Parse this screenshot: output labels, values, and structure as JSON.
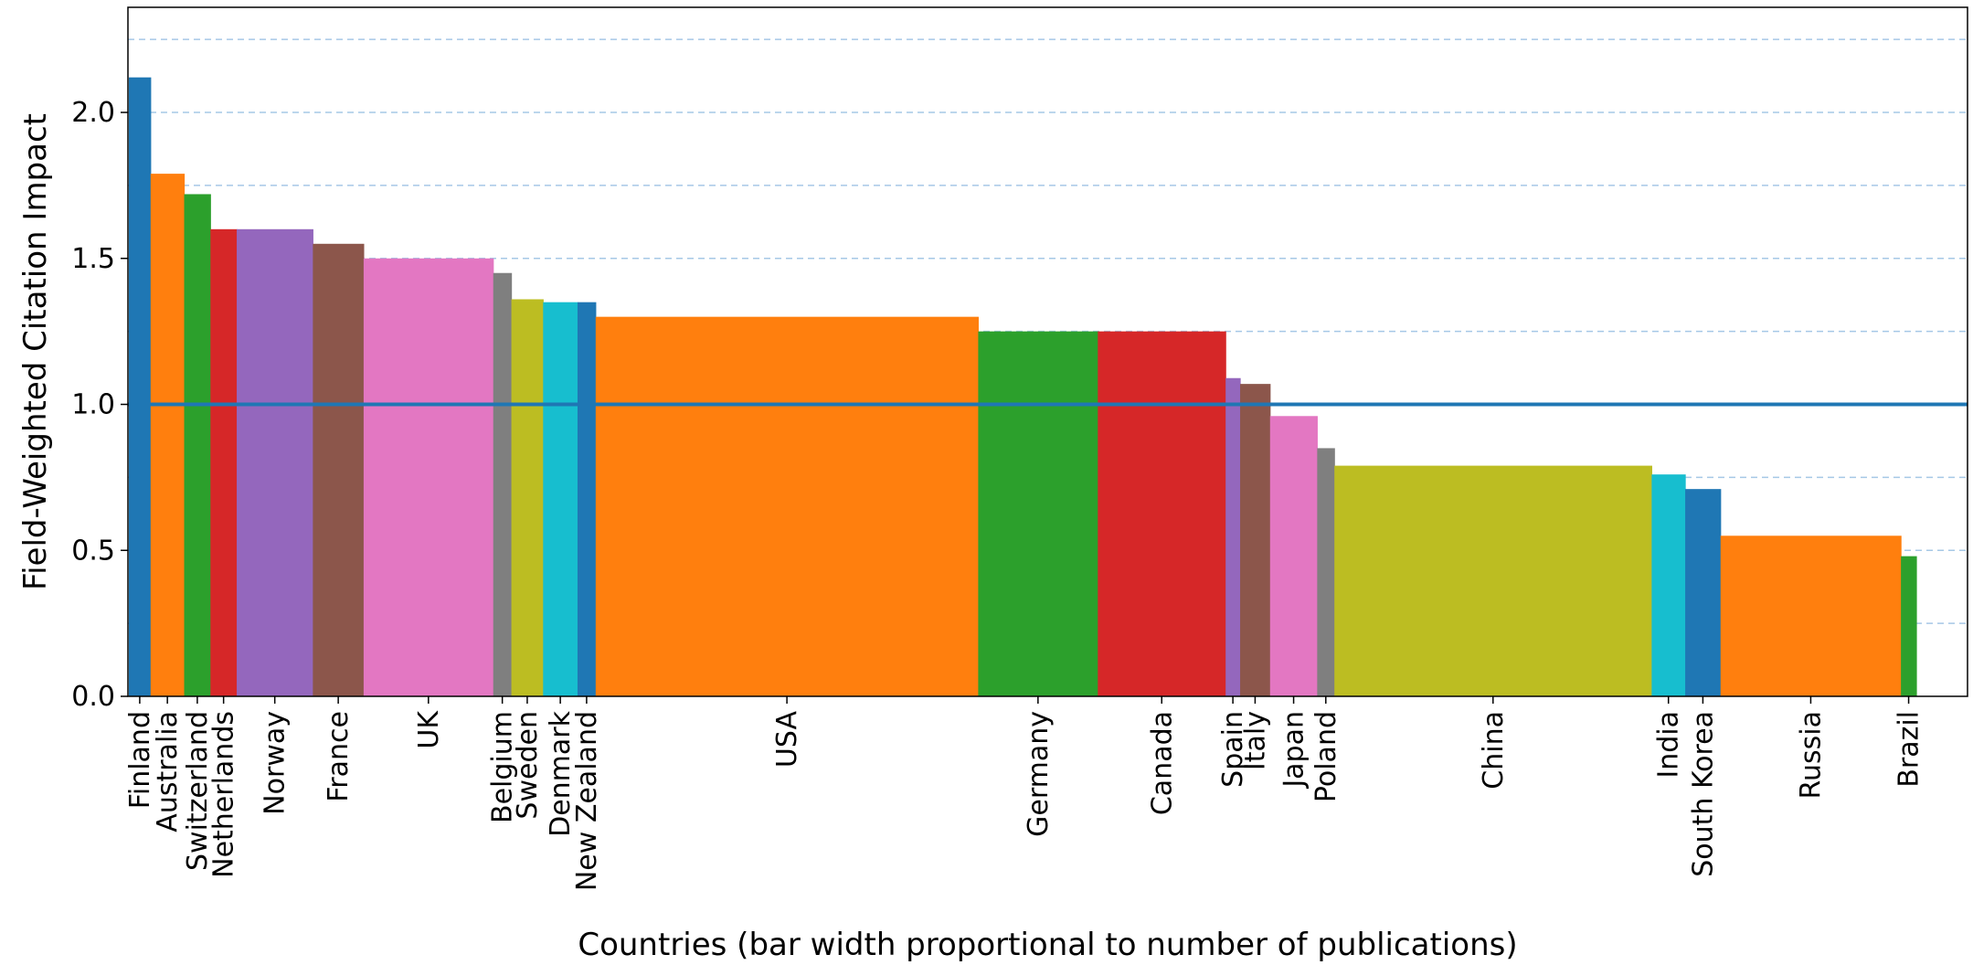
{
  "chart_data": {
    "type": "bar",
    "title": "",
    "xlabel": "Countries (bar width proportional to number of publications)",
    "ylabel": "Field-Weighted Citation Impact",
    "ylim": [
      0,
      2.36
    ],
    "yticks": [
      "0.0",
      "0.5",
      "1.0",
      "1.5",
      "2.0"
    ],
    "grid": "horizontal dashed every 0.25",
    "reference_line": 1.0,
    "categories": [
      "Finland",
      "Australia",
      "Switzerland",
      "Netherlands",
      "Norway",
      "France",
      "UK",
      "Belgium",
      "Sweden",
      "Denmark",
      "New Zealand",
      "USA",
      "Germany",
      "Canada",
      "Spain",
      "Italy",
      "Japan",
      "Poland",
      "China",
      "India",
      "South Korea",
      "Russia",
      "Brazil"
    ],
    "values": [
      2.12,
      1.79,
      1.72,
      1.6,
      1.6,
      1.55,
      1.5,
      1.45,
      1.36,
      1.35,
      1.35,
      1.3,
      1.25,
      1.25,
      1.09,
      1.07,
      0.96,
      0.85,
      0.79,
      0.76,
      0.71,
      0.55,
      0.48
    ],
    "relative_widths": [
      24,
      37,
      29,
      29,
      84,
      56,
      143,
      20,
      35,
      38,
      20,
      422,
      132,
      141,
      16,
      33,
      52,
      19,
      350,
      37,
      39,
      199,
      17
    ],
    "colors": [
      "#1f77b4",
      "#ff7f0e",
      "#2ca02c",
      "#d62728",
      "#9467bd",
      "#8c564b",
      "#e377c2",
      "#7f7f7f",
      "#bcbd22",
      "#17becf",
      "#1f77b4",
      "#ff7f0e",
      "#2ca02c",
      "#d62728",
      "#9467bd",
      "#8c564b",
      "#e377c2",
      "#7f7f7f",
      "#bcbd22",
      "#17becf",
      "#1f77b4",
      "#ff7f0e",
      "#2ca02c"
    ],
    "reference_line_color": "#1f77b4",
    "grid_color": "#a6c8e6"
  }
}
